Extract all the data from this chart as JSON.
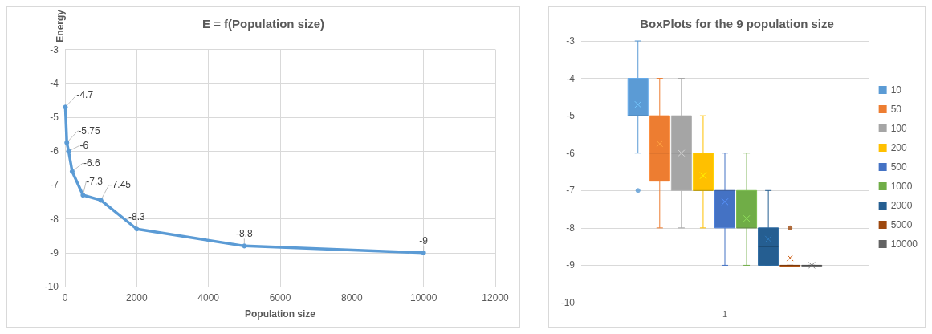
{
  "chart_data": [
    {
      "type": "line",
      "title": "E = f(Population size)",
      "xlabel": "Population size",
      "ylabel": "Energy",
      "color": "#5b9bd5",
      "marker": "circle",
      "data_labels": true,
      "grid": true,
      "x": [
        10,
        50,
        100,
        200,
        500,
        1000,
        2000,
        5000,
        10000
      ],
      "values": [
        -4.7,
        -5.75,
        -6,
        -6.6,
        -7.3,
        -7.45,
        -8.3,
        -8.8,
        -9
      ],
      "xlim": [
        0,
        12000
      ],
      "xticks": [
        0,
        2000,
        4000,
        6000,
        8000,
        10000,
        12000
      ],
      "ylim": [
        -10,
        -3
      ],
      "yticks": [
        -10,
        -9,
        -8,
        -7,
        -6,
        -5,
        -4,
        -3
      ]
    },
    {
      "type": "box",
      "title": "BoxPlots for the 9 population size",
      "categories": [
        "1"
      ],
      "legend": "right",
      "grid": "y",
      "ylim": [
        -10,
        -3
      ],
      "yticks": [
        -10,
        -9,
        -8,
        -7,
        -6,
        -5,
        -4,
        -3
      ],
      "series": [
        {
          "name": "10",
          "color": "#5b9bd5",
          "boxes": [
            {
              "low": -6,
              "q1": -5,
              "median": -5,
              "q3": -4,
              "high": -3,
              "mean": -4.7,
              "outliers": [
                -7
              ]
            }
          ]
        },
        {
          "name": "50",
          "color": "#ed7d31",
          "boxes": [
            {
              "low": -8,
              "q1": -6.75,
              "median": -6,
              "q3": -5,
              "high": -4,
              "mean": -5.75
            }
          ]
        },
        {
          "name": "100",
          "color": "#a5a5a5",
          "boxes": [
            {
              "low": -8,
              "q1": -7,
              "median": -6,
              "q3": -5,
              "high": -4,
              "mean": -6
            }
          ]
        },
        {
          "name": "200",
          "color": "#ffc000",
          "boxes": [
            {
              "low": -8,
              "q1": -7,
              "median": -7,
              "q3": -6,
              "high": -5,
              "mean": -6.6
            }
          ]
        },
        {
          "name": "500",
          "color": "#4472c4",
          "boxes": [
            {
              "low": -9,
              "q1": -8,
              "median": -7,
              "q3": -7,
              "high": -6,
              "mean": -7.3
            }
          ]
        },
        {
          "name": "1000",
          "color": "#70ad47",
          "boxes": [
            {
              "low": -9,
              "q1": -8,
              "median": -8,
              "q3": -7,
              "high": -6,
              "mean": -7.75
            }
          ]
        },
        {
          "name": "2000",
          "color": "#255e91",
          "boxes": [
            {
              "low": -9,
              "q1": -9,
              "median": -8.5,
              "q3": -8,
              "high": -7,
              "mean": -8.3
            }
          ]
        },
        {
          "name": "5000",
          "color": "#9e480e",
          "boxes": [
            {
              "low": -9,
              "q1": -9,
              "median": -9,
              "q3": -9,
              "high": -9,
              "mean": -8.8,
              "outliers": [
                -8
              ]
            }
          ]
        },
        {
          "name": "10000",
          "color": "#636363",
          "boxes": [
            {
              "low": -9,
              "q1": -9,
              "median": -9,
              "q3": -9,
              "high": -9,
              "mean": -9
            }
          ]
        }
      ]
    }
  ]
}
